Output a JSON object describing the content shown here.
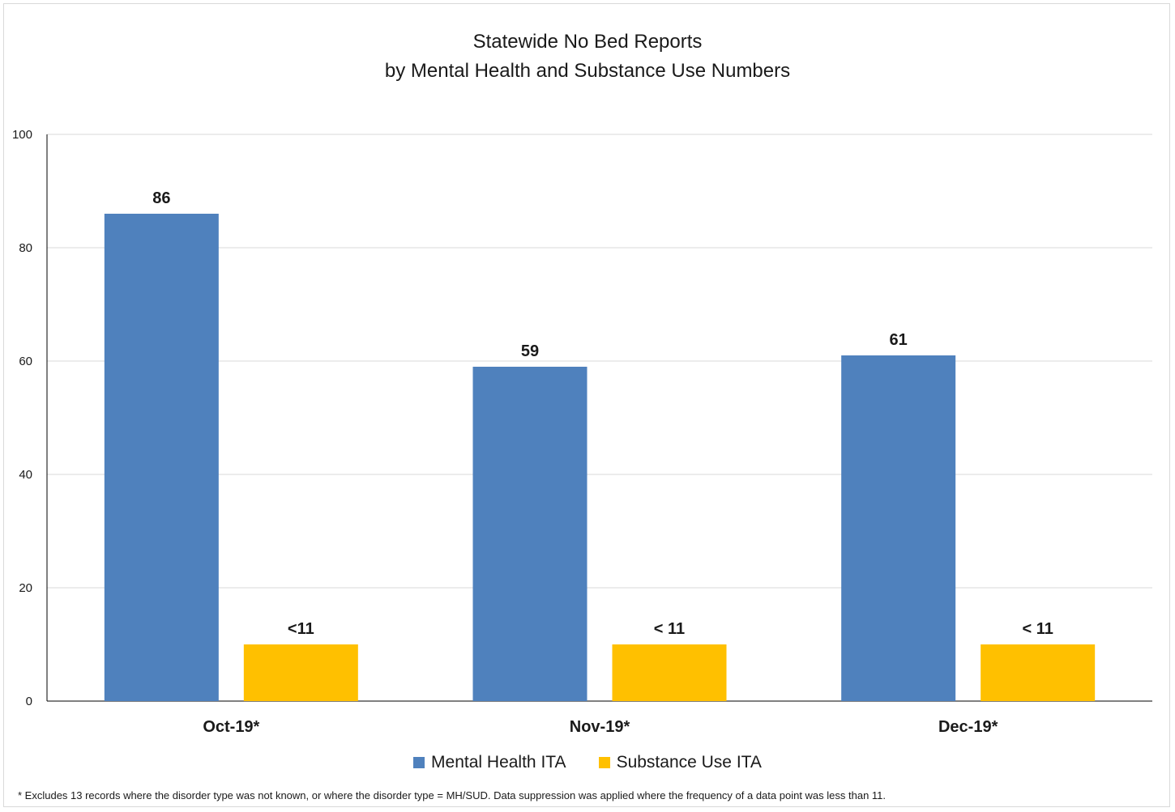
{
  "chart_data": {
    "type": "bar",
    "title": "Statewide No Bed Reports",
    "subtitle": "by Mental Health and Substance Use Numbers",
    "categories": [
      "Oct-19*",
      "Nov-19*",
      "Dec-19*"
    ],
    "series": [
      {
        "name": "Mental Health ITA",
        "color": "#4f81bd",
        "values": [
          86,
          59,
          61
        ],
        "labels": [
          "86",
          "59",
          "61"
        ]
      },
      {
        "name": "Substance Use ITA",
        "color": "#ffc000",
        "values": [
          10,
          10,
          10
        ],
        "labels": [
          "<11",
          "< 11",
          "< 11"
        ]
      }
    ],
    "ylim": [
      0,
      100
    ],
    "yticks": [
      0,
      20,
      40,
      60,
      80,
      100
    ],
    "grid": true,
    "legend": "bottom",
    "xlabel": "",
    "ylabel": ""
  },
  "footnote": "* Excludes 13 records where the disorder type was not known, or where the disorder type = MH/SUD. Data suppression was applied where the frequency of a data point was  less than 11."
}
